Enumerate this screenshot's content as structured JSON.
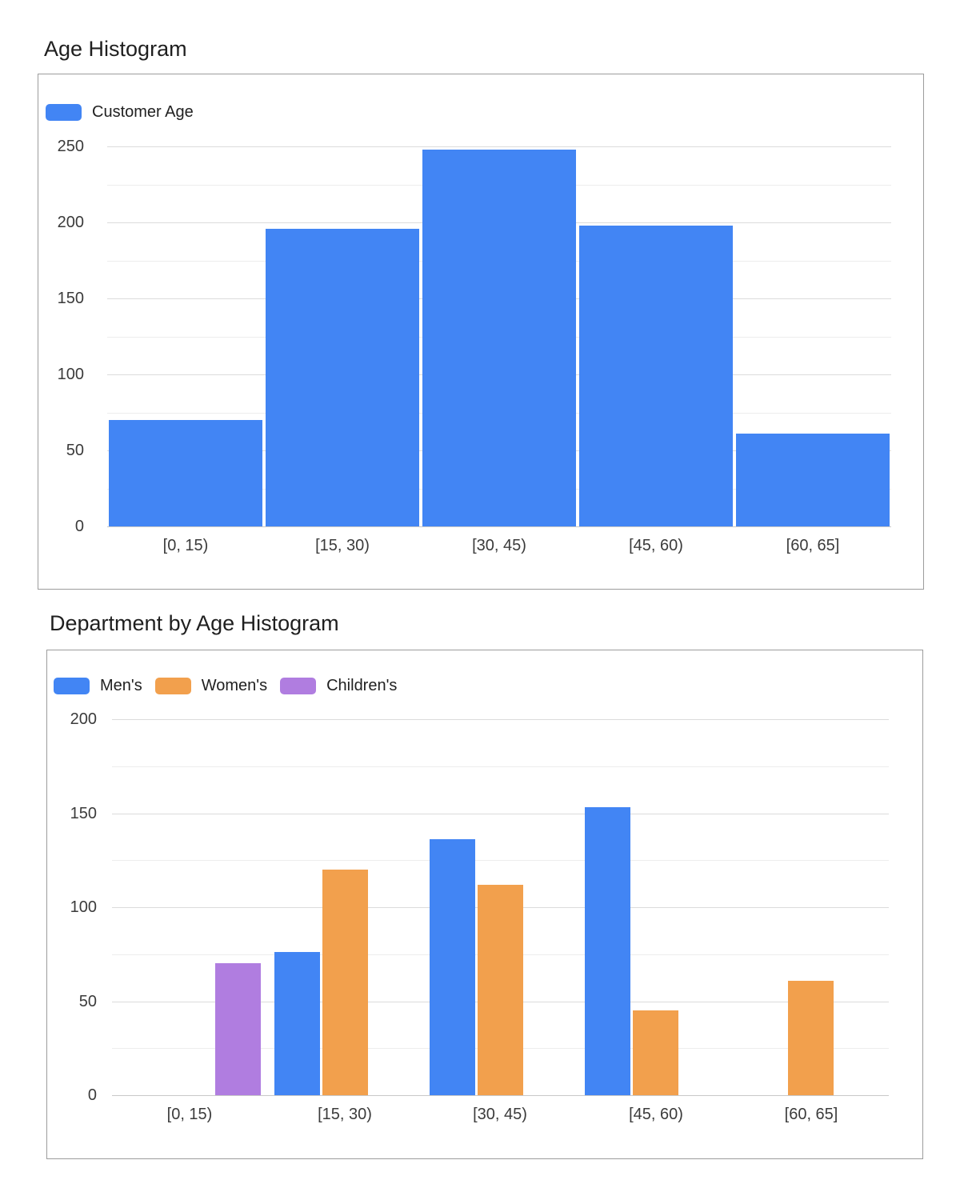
{
  "page_background": "#ffffff",
  "chart_data": [
    {
      "type": "bar",
      "style": "histogram",
      "title": "Age Histogram",
      "categories": [
        "[0, 15)",
        "[15, 30)",
        "[30, 45)",
        "[45, 60)",
        "[60, 65]"
      ],
      "series": [
        {
          "name": "Customer Age",
          "color": "#4285F4",
          "values": [
            70,
            196,
            248,
            198,
            61
          ]
        }
      ],
      "legend_entries": [
        "Customer Age"
      ],
      "legend_position": "top-left",
      "xlabel": "",
      "ylabel": "",
      "ylim": [
        0,
        250
      ],
      "yticks": [
        0,
        50,
        100,
        150,
        200,
        250
      ],
      "ytick_step": 50,
      "minor_step": 25,
      "grid": true
    },
    {
      "type": "bar",
      "style": "grouped",
      "title": "Department by Age Histogram",
      "categories": [
        "[0, 15)",
        "[15, 30)",
        "[30, 45)",
        "[45, 60)",
        "[60, 65]"
      ],
      "series": [
        {
          "name": "Men's",
          "color": "#4285F4",
          "values": [
            null,
            76,
            136,
            153,
            null
          ]
        },
        {
          "name": "Women's",
          "color": "#F2A04D",
          "values": [
            null,
            120,
            112,
            45,
            61
          ]
        },
        {
          "name": "Children's",
          "color": "#B07DE0",
          "values": [
            70,
            null,
            null,
            null,
            null
          ]
        }
      ],
      "legend_entries": [
        "Men's",
        "Women's",
        "Children's"
      ],
      "legend_position": "top-left",
      "xlabel": "",
      "ylabel": "",
      "ylim": [
        0,
        200
      ],
      "yticks": [
        0,
        50,
        100,
        150,
        200
      ],
      "ytick_step": 50,
      "minor_step": 25,
      "grid": true
    }
  ],
  "grid_colors": {
    "baseline": "#c9c9c9",
    "major": "#dcdcdc",
    "minor": "#ededed"
  }
}
